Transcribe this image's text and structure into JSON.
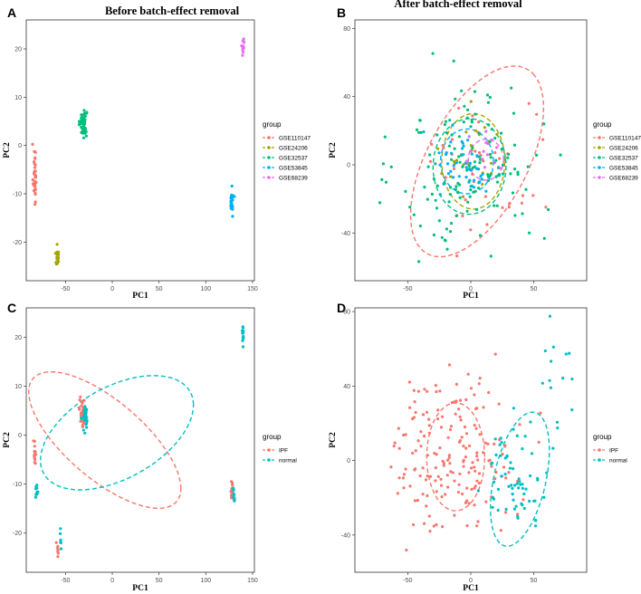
{
  "colors": {
    "GSE110147": "#F8766D",
    "GSE24206": "#A3A500",
    "GSE32537": "#00BF7D",
    "GSE53845": "#00B0F6",
    "GSE68239": "#E76BF3",
    "IPF": "#F8766D",
    "normal": "#00BFC4"
  },
  "chart_data": [
    {
      "panel": "A",
      "type": "scatter",
      "title": "Before batch-effect removal",
      "xlabel": "PC1",
      "ylabel": "PC2",
      "xlim": [
        -92,
        152
      ],
      "ylim": [
        -28,
        26
      ],
      "xticks": [
        -50,
        0,
        50,
        100,
        150
      ],
      "yticks": [
        -20,
        -10,
        0,
        10,
        20
      ],
      "legend_title": "group",
      "legend_position": "right",
      "series": [
        {
          "name": "GSE110147",
          "clusters": [
            {
              "cx": -83,
              "cy": -6,
              "sx": 0.9,
              "sy": 3.2,
              "n": 40
            }
          ]
        },
        {
          "name": "GSE24206",
          "clusters": [
            {
              "cx": -59,
              "cy": -23,
              "sx": 0.8,
              "sy": 1.0,
              "n": 20
            }
          ]
        },
        {
          "name": "GSE32537",
          "clusters": [
            {
              "cx": -31,
              "cy": 4.5,
              "sx": 1.8,
              "sy": 1.4,
              "n": 70
            }
          ]
        },
        {
          "name": "GSE53845",
          "clusters": [
            {
              "cx": 128,
              "cy": -11.5,
              "sx": 0.8,
              "sy": 1.2,
              "n": 30
            }
          ]
        },
        {
          "name": "GSE68239",
          "clusters": [
            {
              "cx": 140,
              "cy": 21,
              "sx": 0.6,
              "sy": 0.9,
              "n": 12
            }
          ]
        }
      ],
      "ellipses": []
    },
    {
      "panel": "B",
      "type": "scatter",
      "title": "After batch-effect removal",
      "xlabel": "PC1",
      "ylabel": "PC2",
      "xlim": [
        -92,
        92
      ],
      "ylim": [
        -68,
        85
      ],
      "xticks": [
        -50,
        0,
        50
      ],
      "yticks": [
        -40,
        0,
        40,
        80
      ],
      "legend_title": "group",
      "legend_position": "right",
      "series": [
        {
          "name": "GSE110147",
          "clusters": [
            {
              "cx": 10,
              "cy": 2,
              "sx": 28,
              "sy": 26,
              "n": 38
            }
          ]
        },
        {
          "name": "GSE24206",
          "clusters": [
            {
              "cx": 2,
              "cy": 2,
              "sx": 13,
              "sy": 13,
              "n": 22
            }
          ]
        },
        {
          "name": "GSE32537",
          "clusters": [
            {
              "cx": 0,
              "cy": -2,
              "sx": 28,
              "sy": 24,
              "n": 150
            }
          ]
        },
        {
          "name": "GSE53845",
          "clusters": [
            {
              "cx": -4,
              "cy": 2,
              "sx": 13,
              "sy": 11,
              "n": 40
            }
          ]
        },
        {
          "name": "GSE68239",
          "clusters": [
            {
              "cx": 12,
              "cy": 2,
              "sx": 9,
              "sy": 8,
              "n": 14
            }
          ]
        }
      ],
      "ellipses": [
        {
          "group": "GSE110147",
          "cx": 5,
          "cy": 2,
          "rx": 68,
          "ry": 36,
          "angle": 48
        },
        {
          "group": "GSE24206",
          "cx": 2,
          "cy": 2,
          "rx": 25,
          "ry": 28,
          "angle": 0
        },
        {
          "group": "GSE32537",
          "cx": -1,
          "cy": -1,
          "rx": 29,
          "ry": 28,
          "angle": 10
        },
        {
          "group": "GSE53845",
          "cx": -3,
          "cy": 2,
          "rx": 21,
          "ry": 19,
          "angle": 0
        },
        {
          "group": "GSE68239",
          "cx": 12,
          "cy": 3,
          "rx": 14,
          "ry": 12,
          "angle": 0
        }
      ]
    },
    {
      "panel": "C",
      "type": "scatter",
      "title": "",
      "xlabel": "PC1",
      "ylabel": "PC2",
      "xlim": [
        -92,
        152
      ],
      "ylim": [
        -28,
        26
      ],
      "xticks": [
        -50,
        0,
        50,
        100,
        150
      ],
      "yticks": [
        -20,
        -10,
        0,
        10,
        20
      ],
      "legend_title": "group",
      "legend_position": "right",
      "series": [
        {
          "name": "IPF",
          "clusters": [
            {
              "cx": -83,
              "cy": -4,
              "sx": 0.7,
              "sy": 1.5,
              "n": 14
            },
            {
              "cx": -58,
              "cy": -23,
              "sx": 0.7,
              "sy": 1.0,
              "n": 8
            },
            {
              "cx": -32,
              "cy": 4.5,
              "sx": 1.5,
              "sy": 1.5,
              "n": 35
            },
            {
              "cx": 128,
              "cy": -11,
              "sx": 0.8,
              "sy": 1.3,
              "n": 14
            }
          ]
        },
        {
          "name": "normal",
          "clusters": [
            {
              "cx": -81,
              "cy": -11.5,
              "sx": 0.6,
              "sy": 1.0,
              "n": 10
            },
            {
              "cx": -55,
              "cy": -21.5,
              "sx": 0.6,
              "sy": 0.8,
              "n": 6
            },
            {
              "cx": -29,
              "cy": 3.5,
              "sx": 1.5,
              "sy": 1.5,
              "n": 30
            },
            {
              "cx": 130,
              "cy": -12.5,
              "sx": 0.7,
              "sy": 1.0,
              "n": 10
            },
            {
              "cx": 140,
              "cy": 21,
              "sx": 0.6,
              "sy": 0.9,
              "n": 12
            }
          ]
        }
      ],
      "ellipses": [
        {
          "group": "IPF",
          "cx": -8,
          "cy": -1,
          "rx": 82,
          "ry": 9.8,
          "angle": -7
        },
        {
          "group": "normal",
          "cx": 5,
          "cy": 0.5,
          "rx": 82,
          "ry": 10.2,
          "angle": 4
        }
      ]
    },
    {
      "panel": "D",
      "type": "scatter",
      "title": "",
      "xlabel": "PC1",
      "ylabel": "PC2",
      "xlim": [
        -92,
        92
      ],
      "ylim": [
        -60,
        82
      ],
      "xticks": [
        -50,
        0,
        50
      ],
      "yticks": [
        -40,
        0,
        40,
        80
      ],
      "legend_title": "group",
      "legend_position": "right",
      "series": [
        {
          "name": "IPF",
          "clusters": [
            {
              "cx": -14,
              "cy": 4,
              "sx": 24,
              "sy": 21,
              "n": 180
            }
          ]
        },
        {
          "name": "normal",
          "clusters": [
            {
              "cx": 36,
              "cy": -8,
              "sx": 13,
              "sy": 14,
              "n": 65
            },
            {
              "cx": 65,
              "cy": 42,
              "sx": 10,
              "sy": 15,
              "n": 14
            }
          ]
        }
      ],
      "ellipses": [
        {
          "group": "IPF",
          "cx": -12,
          "cy": 2,
          "rx": 23,
          "ry": 29,
          "angle": 0
        },
        {
          "group": "normal",
          "cx": 39,
          "cy": -10,
          "rx": 20,
          "ry": 38,
          "angle": -22
        }
      ]
    }
  ]
}
